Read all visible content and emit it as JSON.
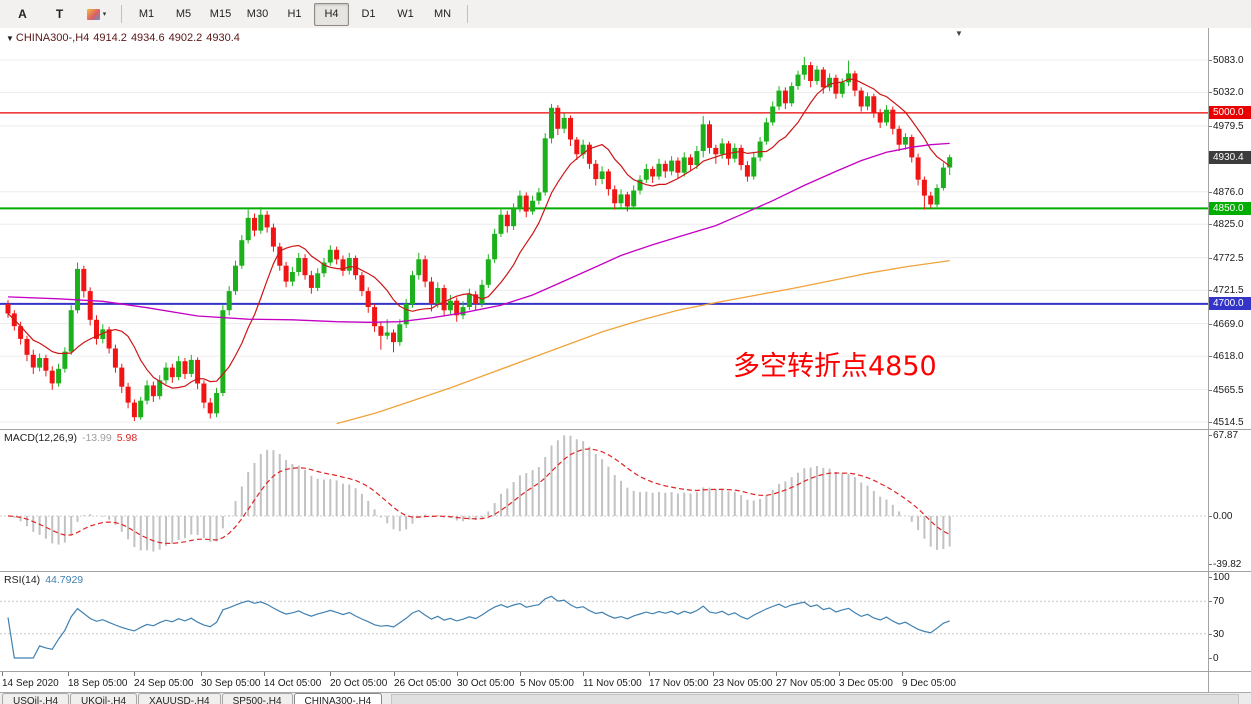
{
  "toolbar": {
    "tool_a": "A",
    "tool_t": "T",
    "timeframes": [
      "M1",
      "M5",
      "M15",
      "M30",
      "H1",
      "H4",
      "D1",
      "W1",
      "MN"
    ],
    "active_timeframe": "H4"
  },
  "icons": {
    "menu_caret": "▼",
    "dropdown_caret": "▾",
    "shift_marker": "▼"
  },
  "chart": {
    "header": {
      "title": "CHINA300-,H4",
      "open": "4914.2",
      "high": "4934.6",
      "low": "4902.2",
      "close": "4930.4"
    }
  },
  "tabs": [
    {
      "label": "USOil-,H4",
      "active": false
    },
    {
      "label": "UKOil-,H4",
      "active": false
    },
    {
      "label": "XAUUSD-,H4",
      "active": false
    },
    {
      "label": "SP500-,H4",
      "active": false
    },
    {
      "label": "CHINA300-,H4",
      "active": true
    }
  ],
  "chart_data": {
    "type": "candlestick",
    "symbol": "CHINA300-",
    "timeframe": "H4",
    "title": "CHINA300-,H4 4914.2 4934.6 4902.2 4930.4",
    "ohlc_display": {
      "open": 4914.2,
      "high": 4934.6,
      "low": 4902.2,
      "close": 4930.4
    },
    "current_price": 4930.4,
    "ylim": [
      4514.5,
      5083.0
    ],
    "y_ticks": [
      5083.0,
      5032.0,
      4979.5,
      4876.0,
      4825.0,
      4772.5,
      4721.5,
      4669.0,
      4618.0,
      4565.5,
      4514.5
    ],
    "x_ticks": [
      {
        "pos": -1,
        "label": "14 Sep 2020"
      },
      {
        "pos": 9.5,
        "label": "18 Sep 05:00"
      },
      {
        "pos": 20,
        "label": "24 Sep 05:00"
      },
      {
        "pos": 30.5,
        "label": "30 Sep 05:00"
      },
      {
        "pos": 40.5,
        "label": "14 Oct 05:00"
      },
      {
        "pos": 51,
        "label": "20 Oct 05:00"
      },
      {
        "pos": 61,
        "label": "26 Oct 05:00"
      },
      {
        "pos": 71,
        "label": "30 Oct 05:00"
      },
      {
        "pos": 81,
        "label": "5 Nov 05:00"
      },
      {
        "pos": 91,
        "label": "11 Nov 05:00"
      },
      {
        "pos": 101.5,
        "label": "17 Nov 05:00"
      },
      {
        "pos": 111.5,
        "label": "23 Nov 05:00"
      },
      {
        "pos": 121.5,
        "label": "27 Nov 05:00"
      },
      {
        "pos": 131.5,
        "label": "3 Dec 05:00"
      },
      {
        "pos": 141.5,
        "label": "9 Dec 05:00"
      }
    ],
    "hlines": [
      {
        "price": 5000.0,
        "label": "5000.0",
        "color": "#e80000",
        "width": 1.2
      },
      {
        "price": 4850.0,
        "label": "4850.0",
        "color": "#00ad00",
        "width": 2
      },
      {
        "price": 4700.0,
        "label": "4700.0",
        "color": "#3434c8",
        "width": 2
      }
    ],
    "annotation": {
      "text": "多空转折点4850",
      "color": "#fe0000"
    },
    "colors": {
      "up": "#1cb11c",
      "down": "#f01414",
      "background": "#ffffff",
      "grid": "#ececec",
      "current_price_box": "#3c3c3c"
    },
    "candles": [
      [
        4700,
        4706,
        4678,
        4685
      ],
      [
        4685,
        4690,
        4658,
        4665
      ],
      [
        4665,
        4672,
        4636,
        4645
      ],
      [
        4645,
        4650,
        4610,
        4620
      ],
      [
        4620,
        4628,
        4590,
        4600
      ],
      [
        4600,
        4622,
        4594,
        4615
      ],
      [
        4615,
        4620,
        4586,
        4595
      ],
      [
        4595,
        4602,
        4565,
        4575
      ],
      [
        4575,
        4606,
        4570,
        4598
      ],
      [
        4598,
        4632,
        4592,
        4625
      ],
      [
        4625,
        4698,
        4620,
        4690
      ],
      [
        4690,
        4765,
        4685,
        4755
      ],
      [
        4755,
        4760,
        4710,
        4720
      ],
      [
        4720,
        4726,
        4666,
        4675
      ],
      [
        4675,
        4682,
        4636,
        4645
      ],
      [
        4645,
        4668,
        4638,
        4660
      ],
      [
        4660,
        4664,
        4622,
        4630
      ],
      [
        4630,
        4636,
        4592,
        4600
      ],
      [
        4600,
        4606,
        4560,
        4570
      ],
      [
        4570,
        4576,
        4536,
        4545
      ],
      [
        4545,
        4550,
        4516,
        4522
      ],
      [
        4522,
        4554,
        4518,
        4548
      ],
      [
        4548,
        4580,
        4542,
        4572
      ],
      [
        4572,
        4578,
        4546,
        4555
      ],
      [
        4555,
        4588,
        4550,
        4580
      ],
      [
        4580,
        4608,
        4574,
        4600
      ],
      [
        4600,
        4606,
        4576,
        4585
      ],
      [
        4585,
        4618,
        4580,
        4610
      ],
      [
        4610,
        4615,
        4582,
        4590
      ],
      [
        4590,
        4620,
        4585,
        4612
      ],
      [
        4612,
        4616,
        4566,
        4575
      ],
      [
        4575,
        4580,
        4536,
        4545
      ],
      [
        4545,
        4552,
        4520,
        4528
      ],
      [
        4528,
        4568,
        4522,
        4560
      ],
      [
        4560,
        4698,
        4555,
        4690
      ],
      [
        4690,
        4728,
        4682,
        4720
      ],
      [
        4720,
        4768,
        4714,
        4760
      ],
      [
        4760,
        4808,
        4755,
        4800
      ],
      [
        4800,
        4848,
        4795,
        4835
      ],
      [
        4835,
        4842,
        4806,
        4815
      ],
      [
        4815,
        4852,
        4810,
        4840
      ],
      [
        4840,
        4846,
        4812,
        4820
      ],
      [
        4820,
        4826,
        4782,
        4790
      ],
      [
        4790,
        4796,
        4752,
        4760
      ],
      [
        4760,
        4766,
        4726,
        4735
      ],
      [
        4735,
        4758,
        4728,
        4750
      ],
      [
        4750,
        4780,
        4744,
        4772
      ],
      [
        4772,
        4778,
        4738,
        4745
      ],
      [
        4745,
        4752,
        4716,
        4725
      ],
      [
        4725,
        4756,
        4720,
        4748
      ],
      [
        4748,
        4772,
        4742,
        4765
      ],
      [
        4765,
        4792,
        4760,
        4785
      ],
      [
        4785,
        4790,
        4762,
        4770
      ],
      [
        4770,
        4776,
        4744,
        4752
      ],
      [
        4752,
        4780,
        4746,
        4772
      ],
      [
        4772,
        4776,
        4738,
        4745
      ],
      [
        4745,
        4750,
        4712,
        4720
      ],
      [
        4720,
        4726,
        4686,
        4695
      ],
      [
        4695,
        4700,
        4656,
        4665
      ],
      [
        4665,
        4672,
        4628,
        4650
      ],
      [
        4650,
        4676,
        4644,
        4655
      ],
      [
        4655,
        4660,
        4624,
        4640
      ],
      [
        4640,
        4676,
        4634,
        4668
      ],
      [
        4668,
        4708,
        4662,
        4700
      ],
      [
        4700,
        4752,
        4694,
        4745
      ],
      [
        4745,
        4780,
        4738,
        4770
      ],
      [
        4770,
        4776,
        4726,
        4735
      ],
      [
        4735,
        4742,
        4688,
        4700
      ],
      [
        4700,
        4734,
        4694,
        4725
      ],
      [
        4725,
        4730,
        4680,
        4690
      ],
      [
        4690,
        4714,
        4684,
        4705
      ],
      [
        4705,
        4710,
        4672,
        4682
      ],
      [
        4682,
        4704,
        4676,
        4695
      ],
      [
        4695,
        4724,
        4690,
        4715
      ],
      [
        4715,
        4720,
        4690,
        4700
      ],
      [
        4700,
        4738,
        4695,
        4730
      ],
      [
        4730,
        4778,
        4725,
        4770
      ],
      [
        4770,
        4818,
        4764,
        4810
      ],
      [
        4810,
        4848,
        4805,
        4840
      ],
      [
        4840,
        4846,
        4812,
        4822
      ],
      [
        4822,
        4858,
        4816,
        4850
      ],
      [
        4850,
        4878,
        4844,
        4870
      ],
      [
        4870,
        4875,
        4836,
        4845
      ],
      [
        4845,
        4870,
        4840,
        4862
      ],
      [
        4862,
        4882,
        4856,
        4875
      ],
      [
        4875,
        4968,
        4870,
        4960
      ],
      [
        4960,
        5014,
        4952,
        5008
      ],
      [
        5008,
        5012,
        4965,
        4975
      ],
      [
        4975,
        4999,
        4968,
        4992
      ],
      [
        4992,
        4996,
        4948,
        4958
      ],
      [
        4958,
        4962,
        4926,
        4935
      ],
      [
        4935,
        4958,
        4928,
        4950
      ],
      [
        4950,
        4954,
        4912,
        4920
      ],
      [
        4920,
        4926,
        4886,
        4896
      ],
      [
        4896,
        4916,
        4888,
        4908
      ],
      [
        4908,
        4912,
        4870,
        4880
      ],
      [
        4880,
        4886,
        4848,
        4858
      ],
      [
        4858,
        4880,
        4850,
        4872
      ],
      [
        4872,
        4876,
        4845,
        4853
      ],
      [
        4853,
        4886,
        4848,
        4878
      ],
      [
        4878,
        4902,
        4872,
        4895
      ],
      [
        4895,
        4920,
        4890,
        4912
      ],
      [
        4912,
        4916,
        4890,
        4900
      ],
      [
        4900,
        4928,
        4895,
        4920
      ],
      [
        4920,
        4925,
        4898,
        4908
      ],
      [
        4908,
        4932,
        4902,
        4925
      ],
      [
        4925,
        4930,
        4896,
        4906
      ],
      [
        4906,
        4938,
        4900,
        4930
      ],
      [
        4930,
        4935,
        4908,
        4918
      ],
      [
        4918,
        4948,
        4912,
        4940
      ],
      [
        4940,
        4995,
        4930,
        4982
      ],
      [
        4982,
        4988,
        4936,
        4945
      ],
      [
        4945,
        4950,
        4920,
        4935
      ],
      [
        4935,
        4960,
        4928,
        4952
      ],
      [
        4952,
        4956,
        4918,
        4928
      ],
      [
        4928,
        4952,
        4922,
        4945
      ],
      [
        4945,
        4950,
        4910,
        4918
      ],
      [
        4918,
        4924,
        4892,
        4900
      ],
      [
        4900,
        4938,
        4895,
        4930
      ],
      [
        4930,
        4962,
        4924,
        4955
      ],
      [
        4955,
        4992,
        4950,
        4985
      ],
      [
        4985,
        5018,
        4980,
        5010
      ],
      [
        5010,
        5042,
        5004,
        5035
      ],
      [
        5035,
        5040,
        5006,
        5015
      ],
      [
        5015,
        5048,
        5010,
        5042
      ],
      [
        5042,
        5066,
        5036,
        5060
      ],
      [
        5060,
        5088,
        5052,
        5075
      ],
      [
        5075,
        5080,
        5040,
        5050
      ],
      [
        5050,
        5074,
        5044,
        5068
      ],
      [
        5068,
        5072,
        5030,
        5040
      ],
      [
        5040,
        5062,
        5034,
        5055
      ],
      [
        5055,
        5060,
        5022,
        5030
      ],
      [
        5030,
        5054,
        5024,
        5048
      ],
      [
        5048,
        5082,
        5042,
        5062
      ],
      [
        5062,
        5066,
        5026,
        5035
      ],
      [
        5035,
        5040,
        5002,
        5010
      ],
      [
        5010,
        5032,
        5004,
        5026
      ],
      [
        5026,
        5030,
        4992,
        5000
      ],
      [
        5000,
        5006,
        4976,
        4985
      ],
      [
        4985,
        5012,
        4980,
        5005
      ],
      [
        5005,
        5010,
        4966,
        4975
      ],
      [
        4975,
        4980,
        4940,
        4950
      ],
      [
        4950,
        4968,
        4942,
        4962
      ],
      [
        4962,
        4966,
        4922,
        4930
      ],
      [
        4930,
        4936,
        4886,
        4895
      ],
      [
        4895,
        4900,
        4848,
        4870
      ],
      [
        4870,
        4876,
        4850,
        4856
      ],
      [
        4856,
        4888,
        4852,
        4882
      ],
      [
        4882,
        4922,
        4878,
        4914
      ],
      [
        4914.2,
        4934.6,
        4902.2,
        4930.4
      ]
    ],
    "overlays": {
      "ma_fast": {
        "type": "sma",
        "period": 10,
        "color": "#cc1616"
      },
      "ma_mid": {
        "type": "ma",
        "color": "#c400c4",
        "points": [
          [
            0,
            4711
          ],
          [
            8,
            4708
          ],
          [
            15,
            4704
          ],
          [
            22,
            4694
          ],
          [
            30,
            4681
          ],
          [
            38,
            4676
          ],
          [
            45,
            4675
          ],
          [
            52,
            4672
          ],
          [
            57,
            4671
          ],
          [
            62,
            4672
          ],
          [
            67,
            4678
          ],
          [
            72,
            4686
          ],
          [
            78,
            4698
          ],
          [
            83,
            4714
          ],
          [
            88,
            4736
          ],
          [
            93,
            4758
          ],
          [
            97,
            4776
          ],
          [
            102,
            4793
          ],
          [
            107,
            4808
          ],
          [
            112,
            4823
          ],
          [
            116,
            4840
          ],
          [
            121,
            4862
          ],
          [
            126,
            4886
          ],
          [
            131,
            4908
          ],
          [
            135,
            4925
          ],
          [
            139,
            4938
          ],
          [
            143,
            4946
          ],
          [
            146,
            4950
          ],
          [
            149,
            4952
          ]
        ]
      },
      "ma_slow": {
        "type": "ma",
        "color": "#efa33a",
        "points": [
          [
            52,
            4512
          ],
          [
            58,
            4528
          ],
          [
            64,
            4548
          ],
          [
            70,
            4568
          ],
          [
            76,
            4590
          ],
          [
            82,
            4612
          ],
          [
            88,
            4634
          ],
          [
            94,
            4656
          ],
          [
            100,
            4674
          ],
          [
            106,
            4690
          ],
          [
            112,
            4702
          ],
          [
            118,
            4713
          ],
          [
            124,
            4724
          ],
          [
            130,
            4736
          ],
          [
            136,
            4748
          ],
          [
            142,
            4758
          ],
          [
            149,
            4768
          ]
        ]
      }
    },
    "indicators": {
      "macd": {
        "name": "MACD(12,26,9)",
        "fast": 12,
        "slow": 26,
        "signal": 9,
        "value": -13.99,
        "signal_value": 5.98,
        "y_ticks": [
          67.87,
          0.0,
          -39.82
        ],
        "hist_color": "#c2c2c2",
        "signal_color": "#e02424",
        "value_color": "#a0a0a0"
      },
      "rsi": {
        "name": "RSI(14)",
        "period": 14,
        "value": 44.7929,
        "y_ticks": [
          100,
          70,
          30,
          0
        ],
        "levels": [
          70,
          30
        ],
        "color": "#4080b0"
      }
    }
  }
}
